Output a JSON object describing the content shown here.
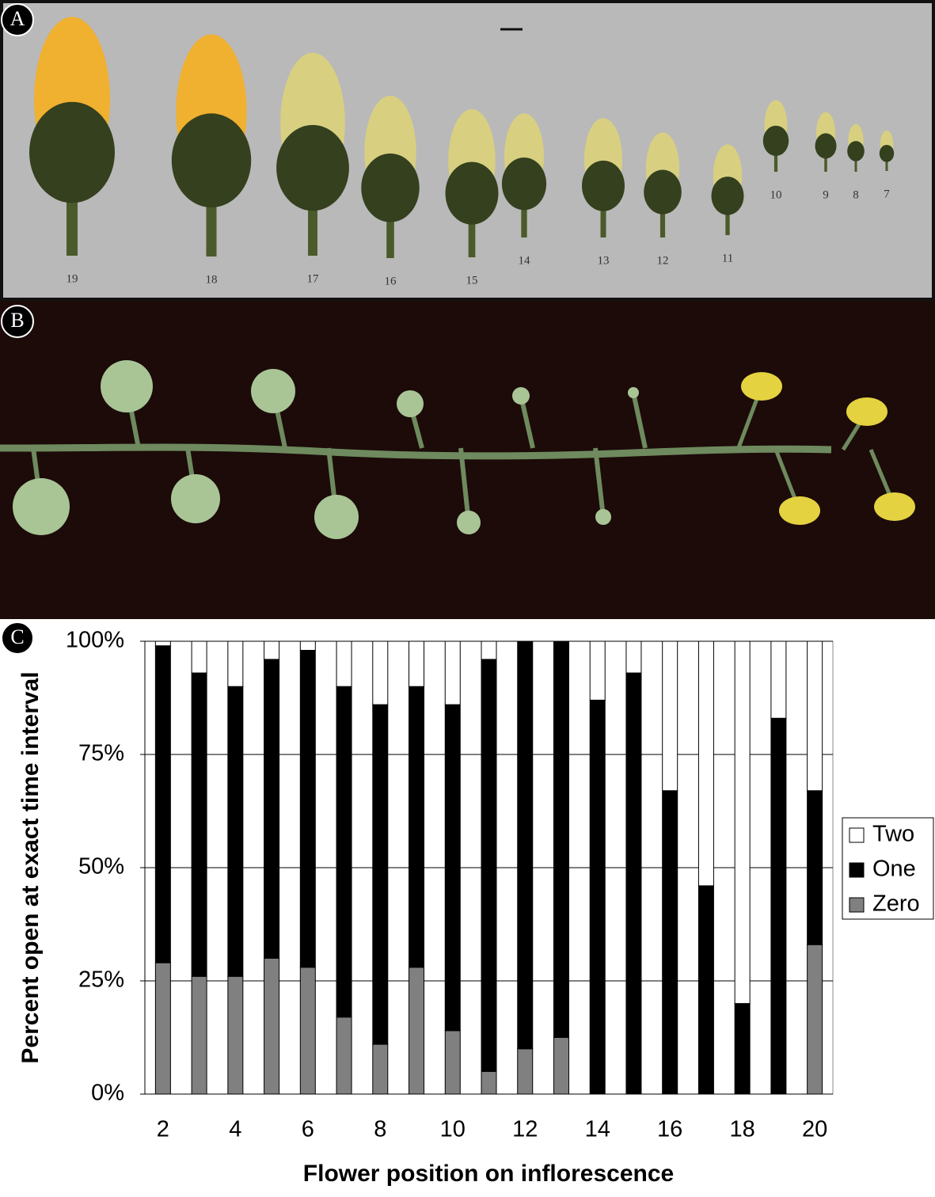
{
  "panels": [
    {
      "label": "A",
      "stages": [
        19,
        18,
        17,
        16,
        15,
        14,
        13,
        12,
        11,
        10,
        9,
        8,
        7
      ]
    },
    {
      "label": "B"
    },
    {
      "label": "C"
    }
  ],
  "chart_data": {
    "type": "bar",
    "stacked": true,
    "x_label": "Flower position on inflorescence",
    "y_label": "Percent open at exact time interval",
    "categories": [
      2,
      null,
      4,
      null,
      6,
      null,
      8,
      null,
      10,
      null,
      12,
      null,
      14,
      null,
      16,
      null,
      18,
      null,
      20
    ],
    "series": [
      {
        "name": "Two",
        "color": "#ffffff",
        "values": [
          1,
          7,
          10,
          4,
          2,
          10,
          14,
          10,
          14,
          4,
          0,
          0,
          13,
          7,
          33,
          54,
          80,
          17,
          33
        ]
      },
      {
        "name": "One",
        "color": "#000000",
        "values": [
          70,
          67,
          64,
          66,
          70,
          73,
          75,
          62,
          72,
          91,
          90,
          87.5,
          87,
          93,
          67,
          46,
          20,
          83,
          34
        ]
      },
      {
        "name": "Zero",
        "color": "#808080",
        "values": [
          29,
          26,
          26,
          30,
          28,
          17,
          11,
          28,
          14,
          5,
          10,
          12.5,
          0,
          0,
          0,
          0,
          0,
          0,
          33
        ]
      }
    ],
    "ylim": [
      0,
      100
    ],
    "yticks": [
      {
        "value": 0,
        "label": "0%"
      },
      {
        "value": 25,
        "label": "25%"
      },
      {
        "value": 50,
        "label": "50%"
      },
      {
        "value": 75,
        "label": "75%"
      },
      {
        "value": 100,
        "label": "100%"
      }
    ],
    "grid": true,
    "legend": "right"
  }
}
